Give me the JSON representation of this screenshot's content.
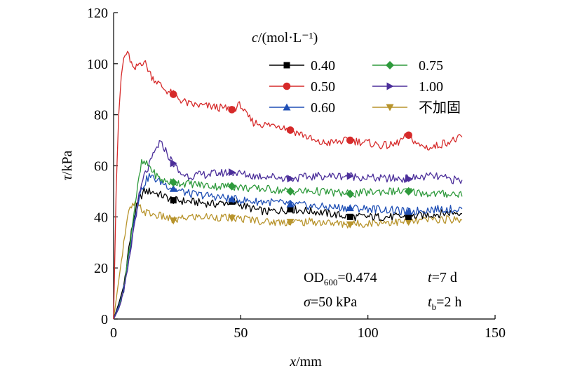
{
  "chart_data": {
    "type": "line",
    "xlabel_var": "x",
    "xlabel_unit": "/mm",
    "ylabel_var": "τ",
    "ylabel_unit": "/kPa",
    "xlim": [
      0,
      150
    ],
    "ylim": [
      0,
      120
    ],
    "xticks": [
      "0",
      "50",
      "100",
      "150"
    ],
    "yticks": [
      "0",
      "20",
      "40",
      "60",
      "80",
      "100",
      "120"
    ],
    "grid": false,
    "legend": {
      "placement": "top-center",
      "title": "c/(mol·L⁻¹)"
    },
    "annotations": [
      "OD600=0.474",
      "t=7 d",
      "σ=50 kPa",
      "tb=2 h"
    ],
    "series": [
      {
        "name": "0.40",
        "color": "#000000",
        "marker": "square",
        "x": [
          0,
          2,
          4,
          6,
          8,
          10,
          12,
          15,
          20,
          23.5,
          30,
          40,
          46.5,
          55,
          60,
          69.5,
          80,
          93,
          105,
          116,
          125,
          137
        ],
        "y": [
          0,
          6,
          13,
          28,
          40,
          47,
          50,
          50,
          48,
          46.5,
          46,
          45,
          46,
          43,
          42,
          43,
          42,
          40,
          40,
          40,
          41,
          42
        ]
      },
      {
        "name": "0.50",
        "color": "#d62a2a",
        "marker": "circle",
        "x": [
          0,
          1,
          2,
          3,
          4,
          5,
          6,
          8,
          10,
          12,
          15,
          18,
          20,
          23.5,
          26,
          30,
          40,
          46.5,
          50,
          52,
          55,
          60,
          65,
          69.5,
          75,
          80,
          85,
          93,
          100,
          105,
          110,
          116,
          120,
          125,
          130,
          137
        ],
        "y": [
          0,
          50,
          80,
          95,
          102,
          104,
          103,
          97,
          100,
          101,
          95,
          92,
          90,
          88,
          86,
          84,
          83,
          82,
          84,
          80,
          77,
          76,
          76,
          74,
          72,
          69,
          69,
          70,
          69,
          68,
          68,
          72,
          68,
          67,
          69,
          71
        ]
      },
      {
        "name": "0.60",
        "color": "#1f4fb5",
        "marker": "triangle-up",
        "x": [
          0,
          2,
          4,
          6,
          8,
          10,
          12,
          14,
          16,
          20,
          23.5,
          30,
          40,
          46.5,
          55,
          60,
          69.5,
          80,
          93,
          105,
          116,
          125,
          137
        ],
        "y": [
          0,
          5,
          12,
          25,
          38,
          48,
          53,
          56,
          55,
          53,
          51,
          49,
          48,
          47,
          46,
          46,
          45,
          44,
          43.5,
          43,
          42,
          43,
          43
        ]
      },
      {
        "name": "0.75",
        "color": "#2e9a3c",
        "marker": "diamond",
        "x": [
          0,
          2,
          4,
          6,
          8,
          10,
          11,
          12,
          14,
          16,
          18,
          20,
          23.5,
          30,
          40,
          46.5,
          55,
          60,
          69.5,
          80,
          93,
          105,
          116,
          125,
          137
        ],
        "y": [
          0,
          4,
          12,
          26,
          42,
          55,
          61,
          61,
          60,
          57,
          55,
          54,
          53.5,
          53,
          52,
          52,
          51,
          51,
          50,
          50,
          49,
          50,
          50,
          49,
          49
        ]
      },
      {
        "name": "1.00",
        "color": "#4b2e9a",
        "marker": "triangle-right",
        "x": [
          0,
          2,
          4,
          6,
          8,
          10,
          12,
          14,
          16,
          18,
          20,
          22,
          23.5,
          26,
          30,
          40,
          46.5,
          55,
          60,
          69.5,
          80,
          93,
          105,
          116,
          125,
          137
        ],
        "y": [
          0,
          4,
          10,
          22,
          36,
          48,
          56,
          60,
          65,
          69,
          67,
          63,
          61,
          57,
          56,
          57,
          57.5,
          56,
          56,
          55,
          56,
          56,
          55,
          55,
          56,
          54
        ]
      },
      {
        "name": "不加固",
        "color": "#b8942c",
        "marker": "triangle-down",
        "x": [
          0,
          2,
          4,
          6,
          8,
          10,
          12,
          15,
          20,
          23.5,
          30,
          40,
          46.5,
          55,
          60,
          69.5,
          80,
          93,
          105,
          116,
          125,
          137
        ],
        "y": [
          0,
          15,
          30,
          42,
          45,
          44,
          42,
          41,
          40,
          38.5,
          40,
          40,
          39.5,
          39,
          38,
          38,
          38,
          37,
          38,
          38,
          39,
          39
        ]
      }
    ]
  }
}
